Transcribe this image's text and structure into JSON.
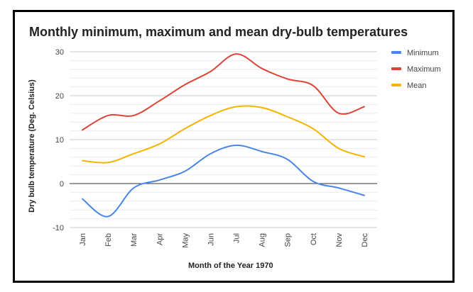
{
  "chart_data": {
    "type": "line",
    "title": "Monthly minimum, maximum and mean dry-bulb temperatures",
    "xlabel": "Month of the Year 1970",
    "ylabel": "Dry bulb temperature (Deg. Celsius)",
    "categories": [
      "Jan",
      "Feb",
      "Mar",
      "Apr",
      "May",
      "Jun",
      "Jul",
      "Aug",
      "Sep",
      "Oct",
      "Nov",
      "Dec"
    ],
    "ylim": [
      -10,
      30
    ],
    "yticks": [
      -10,
      0,
      10,
      20,
      30
    ],
    "grid": true,
    "legend_position": "right",
    "series": [
      {
        "name": "Minimum",
        "color": "#4a86e8",
        "values": [
          -3.5,
          -7.5,
          -1.0,
          0.8,
          2.8,
          6.8,
          8.7,
          7.3,
          5.5,
          0.5,
          -1.0,
          -2.7
        ]
      },
      {
        "name": "Maximum",
        "color": "#db4437",
        "values": [
          12.2,
          15.5,
          15.5,
          18.8,
          22.5,
          25.5,
          29.5,
          26.2,
          23.8,
          22.3,
          16.0,
          17.5
        ]
      },
      {
        "name": "Mean",
        "color": "#f4b400",
        "values": [
          5.2,
          4.8,
          6.8,
          9.0,
          12.5,
          15.5,
          17.5,
          17.3,
          15.2,
          12.5,
          8.0,
          6.1
        ]
      }
    ]
  }
}
